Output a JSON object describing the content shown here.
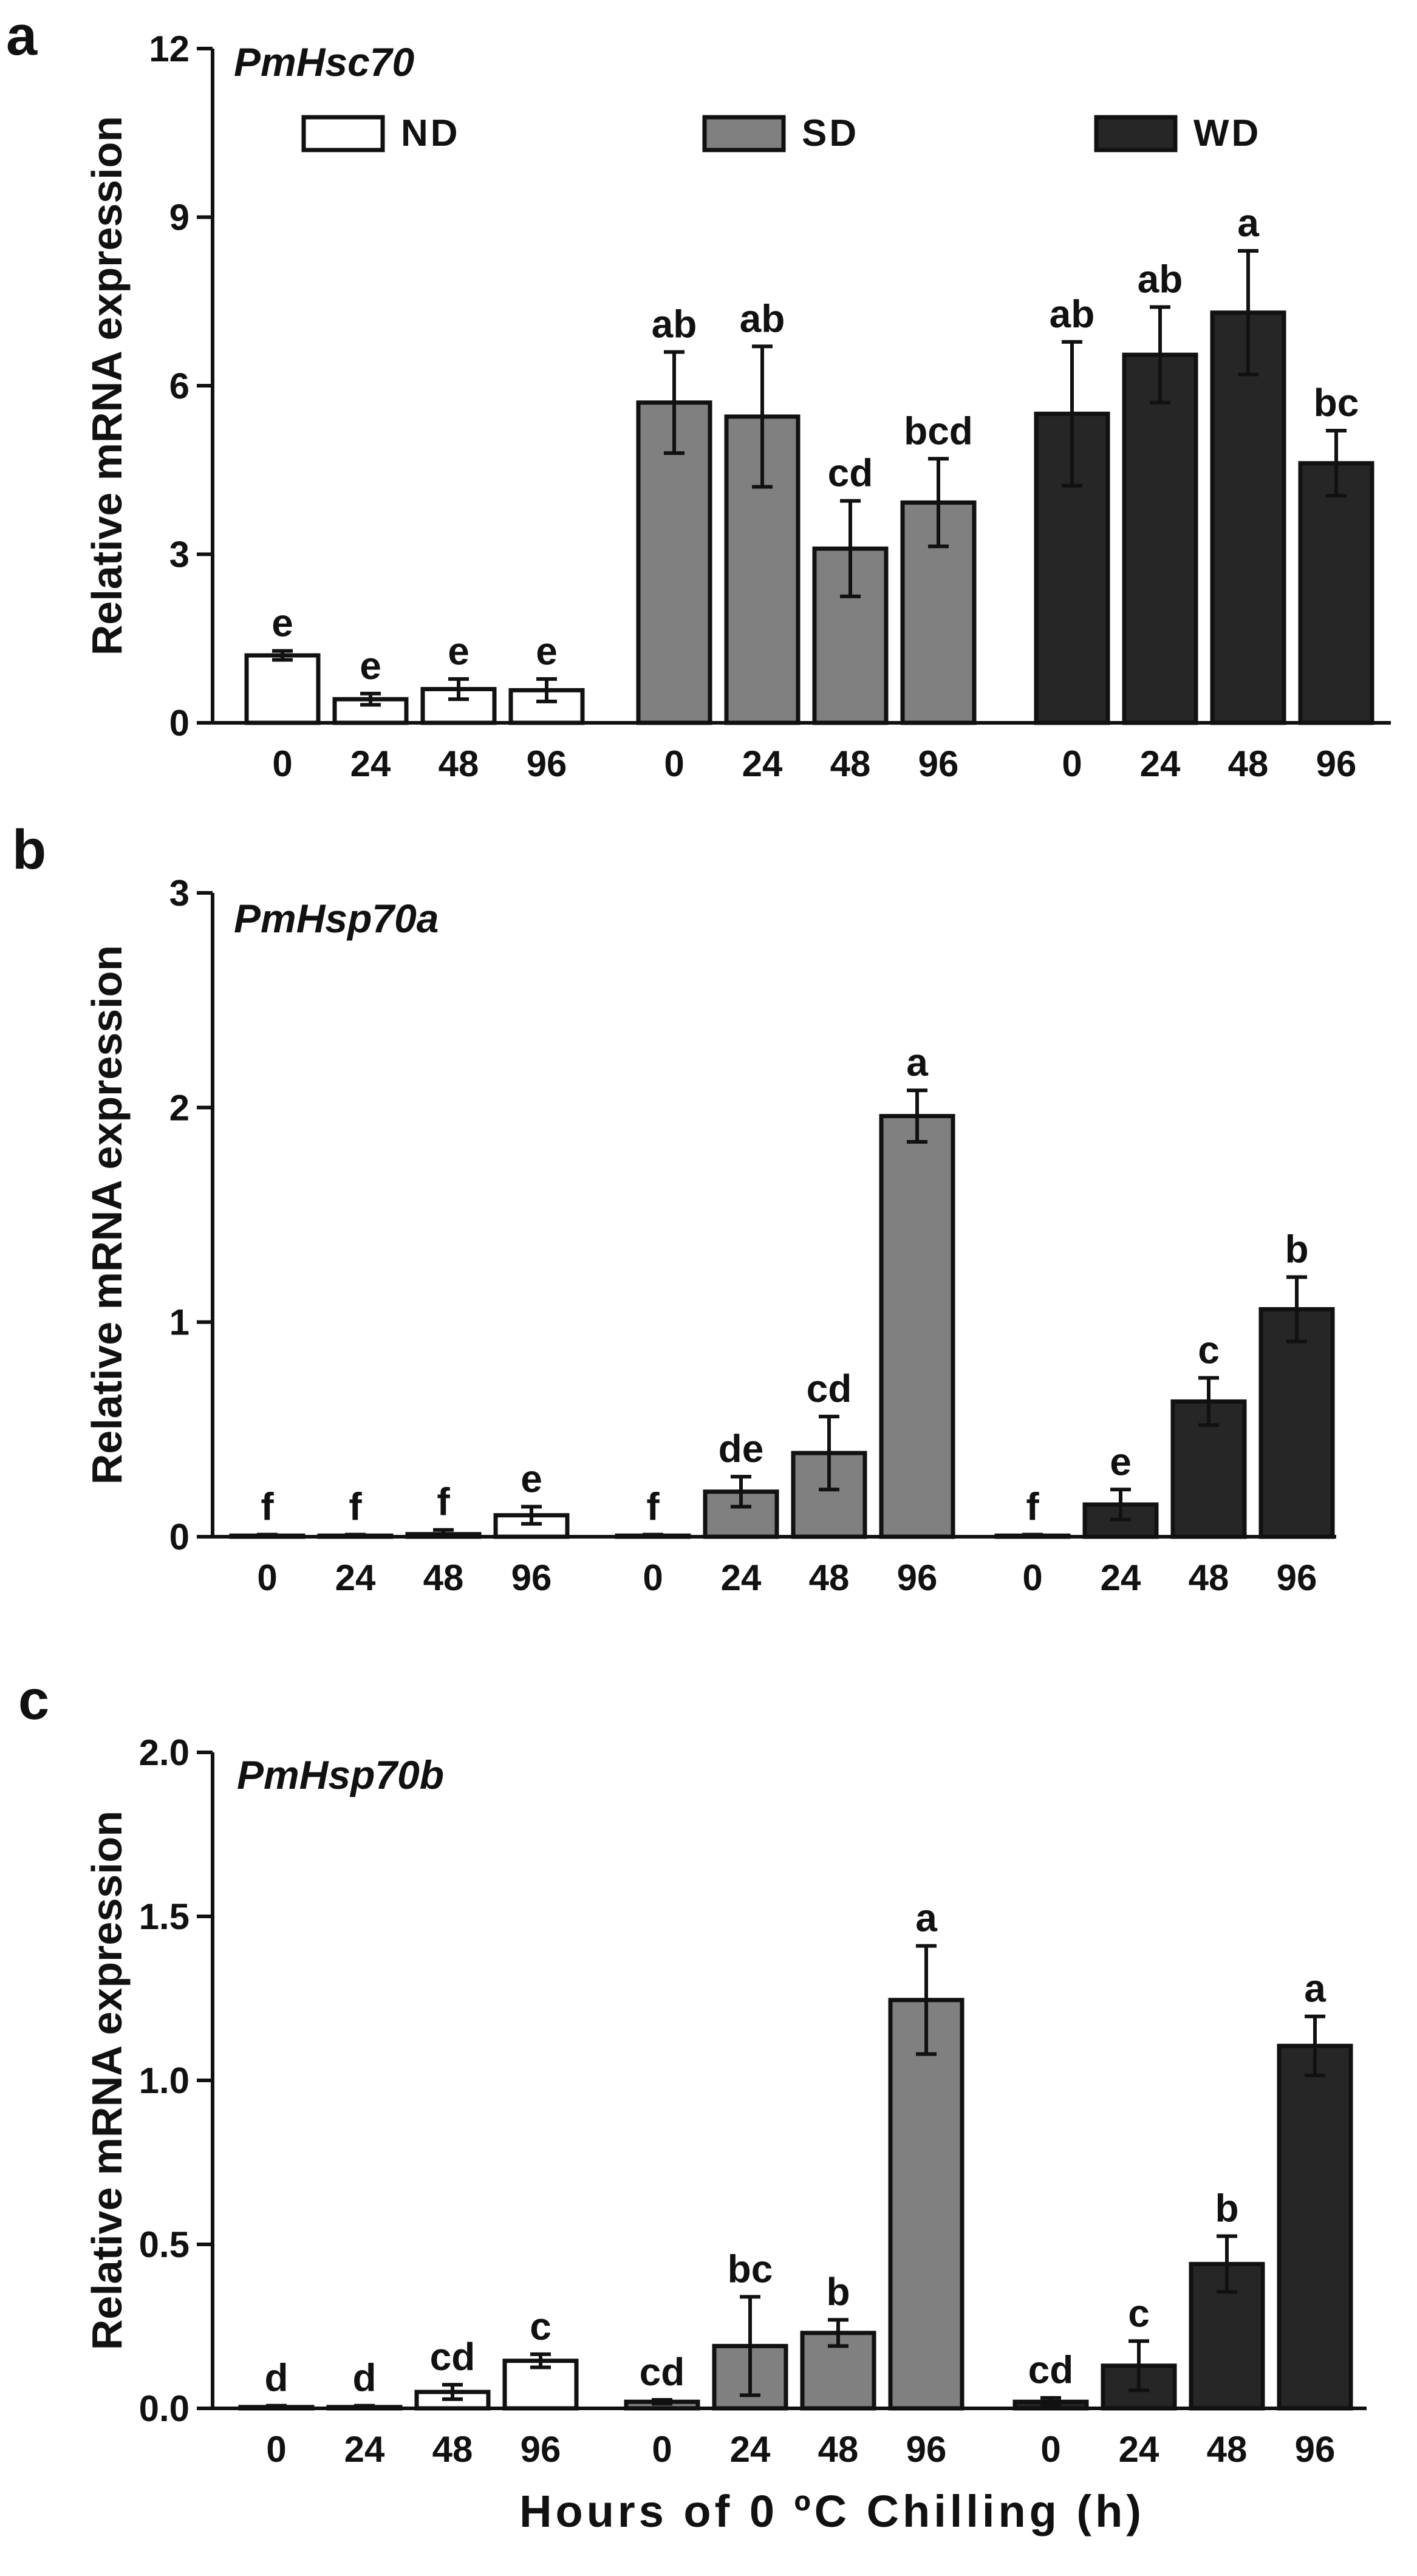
{
  "figure": {
    "x_axis_label": "Hours of 0 ºC Chilling (h)",
    "y_axis_label": "Relative mRNA expression"
  },
  "legend": [
    {
      "label": "ND",
      "color": "#ffffff"
    },
    {
      "label": "SD",
      "color": "#808080"
    },
    {
      "label": "WD",
      "color": "#262626"
    }
  ],
  "chart_data": [
    {
      "type": "bar",
      "panel": "a",
      "title": "PmHsc70",
      "ylabel": "Relative mRNA expression",
      "xlabel": "Hours of 0 ºC Chilling (h)",
      "ylim": [
        0,
        12
      ],
      "yticks": [
        0,
        3,
        6,
        9,
        12
      ],
      "ytick_labels": [
        "0",
        "3",
        "6",
        "9",
        "12"
      ],
      "categories": [
        "0",
        "24",
        "48",
        "96"
      ],
      "series": [
        {
          "name": "ND",
          "color": "#ffffff",
          "values": [
            1.2,
            0.42,
            0.6,
            0.58
          ],
          "errors": [
            0.08,
            0.1,
            0.18,
            0.2
          ],
          "letters": [
            "e",
            "e",
            "e",
            "e"
          ]
        },
        {
          "name": "SD",
          "color": "#808080",
          "values": [
            5.7,
            5.45,
            3.1,
            3.92
          ],
          "errors": [
            0.9,
            1.25,
            0.85,
            0.78
          ],
          "letters": [
            "ab",
            "ab",
            "cd",
            "bcd"
          ]
        },
        {
          "name": "WD",
          "color": "#262626",
          "values": [
            5.5,
            6.55,
            7.3,
            4.62
          ],
          "errors": [
            1.28,
            0.85,
            1.1,
            0.58
          ],
          "letters": [
            "ab",
            "ab",
            "a",
            "bc"
          ]
        }
      ]
    },
    {
      "type": "bar",
      "panel": "b",
      "title": "PmHsp70a",
      "ylabel": "Relative mRNA expression",
      "xlabel": "Hours of 0 ºC Chilling (h)",
      "ylim": [
        0,
        3
      ],
      "yticks": [
        0,
        1,
        2,
        3
      ],
      "ytick_labels": [
        "0",
        "1",
        "2",
        "3"
      ],
      "categories": [
        "0",
        "24",
        "48",
        "96"
      ],
      "series": [
        {
          "name": "ND",
          "color": "#ffffff",
          "values": [
            0.005,
            0.005,
            0.012,
            0.1
          ],
          "errors": [
            0.005,
            0.005,
            0.02,
            0.04
          ],
          "letters": [
            "f",
            "f",
            "f",
            "e"
          ]
        },
        {
          "name": "SD",
          "color": "#808080",
          "values": [
            0.005,
            0.21,
            0.39,
            1.96
          ],
          "errors": [
            0.005,
            0.07,
            0.17,
            0.12
          ],
          "letters": [
            "f",
            "de",
            "cd",
            "a"
          ]
        },
        {
          "name": "WD",
          "color": "#262626",
          "values": [
            0.005,
            0.15,
            0.63,
            1.06
          ],
          "errors": [
            0.005,
            0.07,
            0.11,
            0.15
          ],
          "letters": [
            "f",
            "e",
            "c",
            "b"
          ]
        }
      ]
    },
    {
      "type": "bar",
      "panel": "c",
      "title": "PmHsp70b",
      "ylabel": "Relative mRNA expression",
      "xlabel": "Hours of 0 ºC Chilling (h)",
      "ylim": [
        0,
        2.0
      ],
      "yticks": [
        0,
        0.5,
        1.0,
        1.5,
        2.0
      ],
      "ytick_labels": [
        "0.0",
        "0.5",
        "1.0",
        "1.5",
        "2.0"
      ],
      "categories": [
        "0",
        "24",
        "48",
        "96"
      ],
      "series": [
        {
          "name": "ND",
          "color": "#ffffff",
          "values": [
            0.004,
            0.004,
            0.05,
            0.145
          ],
          "errors": [
            0.004,
            0.004,
            0.022,
            0.02
          ],
          "letters": [
            "d",
            "d",
            "cd",
            "c"
          ]
        },
        {
          "name": "SD",
          "color": "#808080",
          "values": [
            0.02,
            0.19,
            0.23,
            1.245
          ],
          "errors": [
            0.006,
            0.15,
            0.04,
            0.165
          ],
          "letters": [
            "cd",
            "bc",
            "b",
            "a"
          ]
        },
        {
          "name": "WD",
          "color": "#262626",
          "values": [
            0.02,
            0.13,
            0.44,
            1.105
          ],
          "errors": [
            0.012,
            0.075,
            0.085,
            0.09
          ],
          "letters": [
            "cd",
            "c",
            "b",
            "a"
          ]
        }
      ]
    }
  ]
}
